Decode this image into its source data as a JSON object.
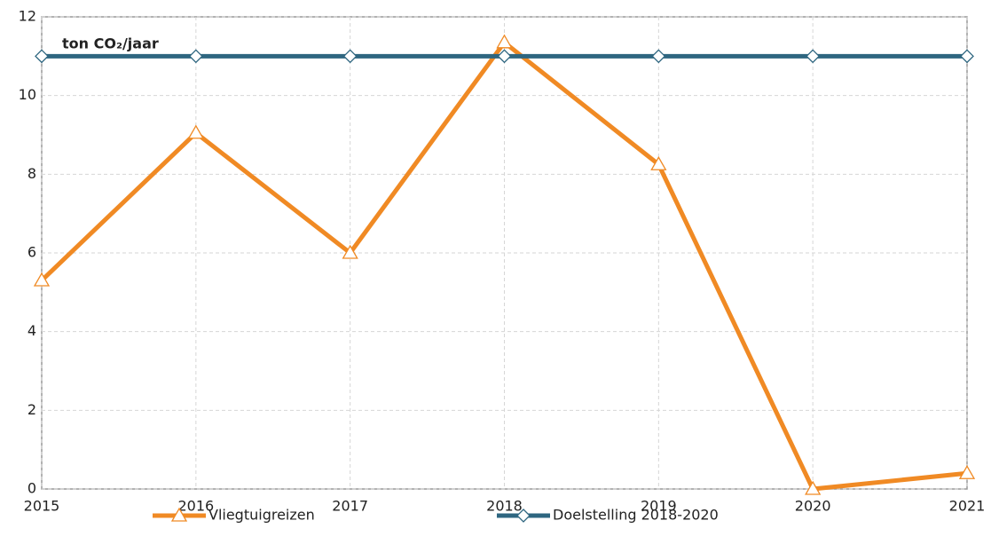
{
  "chart_data": {
    "type": "line",
    "annotation": "ton CO₂/jaar",
    "x": [
      2015,
      2016,
      2017,
      2018,
      2019,
      2020,
      2021
    ],
    "series": [
      {
        "name": "Vliegtuigreizen",
        "color": "#f08a24",
        "marker": "triangle",
        "values": [
          5.3,
          9.05,
          6.0,
          11.35,
          8.25,
          0,
          0.4
        ]
      },
      {
        "name": "Doelstelling 2018-2020",
        "color": "#2e6680",
        "marker": "diamond",
        "values": [
          11,
          11,
          11,
          11,
          11,
          11,
          11
        ]
      }
    ],
    "xlim": [
      2015,
      2021
    ],
    "xticks": [
      2015,
      2016,
      2017,
      2018,
      2019,
      2020,
      2021
    ],
    "ylim": [
      0,
      12
    ],
    "yticks": [
      0,
      2,
      4,
      6,
      8,
      10,
      12
    ],
    "grid": true,
    "legend": "bottom"
  }
}
